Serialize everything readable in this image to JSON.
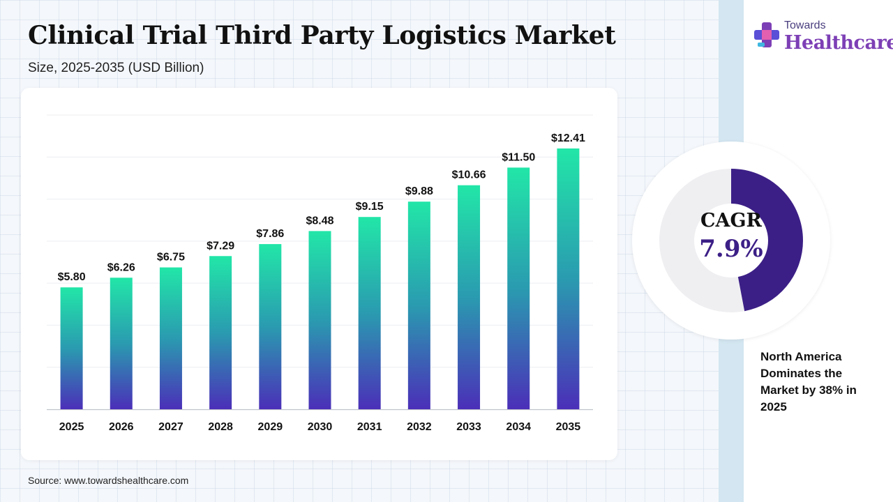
{
  "header": {
    "title": "Clinical Trial Third Party Logistics Market",
    "subtitle": "Size, 2025-2035 (USD Billion)"
  },
  "brand": {
    "logo_top": "Towards",
    "logo_main": "Healthcare"
  },
  "chart_data": {
    "type": "bar",
    "title": "Clinical Trial Third Party Logistics Market",
    "subtitle": "Size, 2025-2035 (USD Billion)",
    "categories": [
      "2025",
      "2026",
      "2027",
      "2028",
      "2029",
      "2030",
      "2031",
      "2032",
      "2033",
      "2034",
      "2035"
    ],
    "values": [
      5.8,
      6.26,
      6.75,
      7.29,
      7.86,
      8.48,
      9.15,
      9.88,
      10.66,
      11.5,
      12.41
    ],
    "value_labels": [
      "$5.80",
      "$6.26",
      "$6.75",
      "$7.29",
      "$7.86",
      "$8.48",
      "$9.15",
      "$9.88",
      "$10.66",
      "$11.50",
      "$12.41"
    ],
    "ylim": [
      0,
      14
    ],
    "grid": true,
    "bar_gradient": {
      "top": "#22e6a8",
      "middle": "#2a9bb0",
      "bottom": "#4b2fb8"
    }
  },
  "cagr": {
    "label": "CAGR",
    "value": "7.9%",
    "ring_fraction": 0.47,
    "ring_color": "#3c1f86",
    "track_color": "#efeff2"
  },
  "region_note": "North America Dominates the Market by 38% in 2025",
  "source": "Source: www.towardshealthcare.com"
}
